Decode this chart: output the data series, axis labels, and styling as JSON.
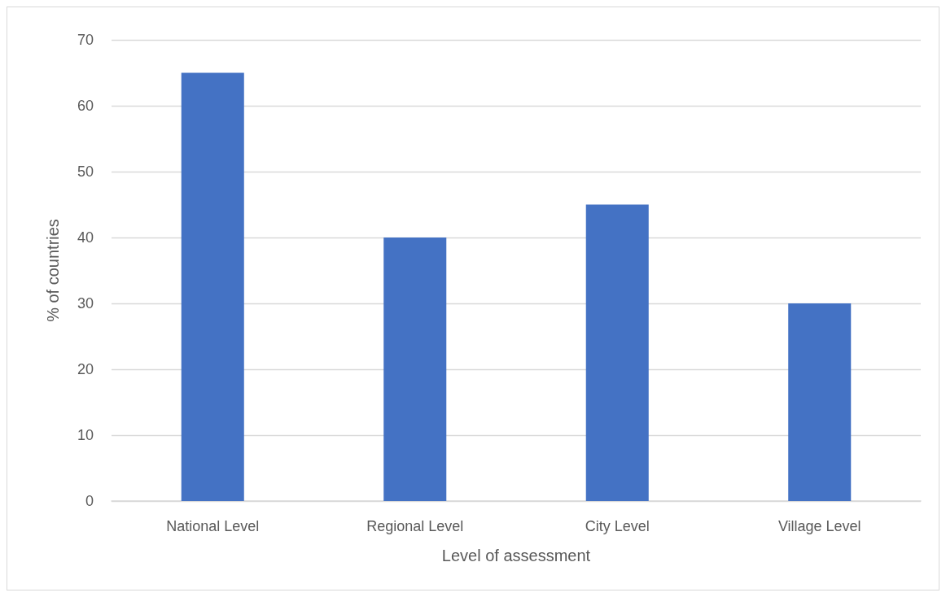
{
  "chart_data": {
    "type": "bar",
    "xlabel": "Level of assessment",
    "ylabel": "% of countries",
    "categories": [
      "National Level",
      "Regional Level",
      "City Level",
      "Village Level"
    ],
    "values": [
      65,
      40,
      45,
      30
    ],
    "color": "#4472c4",
    "ylim": [
      0,
      70
    ],
    "yticks": [
      0,
      10,
      20,
      30,
      40,
      50,
      60,
      70
    ],
    "grid": "y"
  }
}
